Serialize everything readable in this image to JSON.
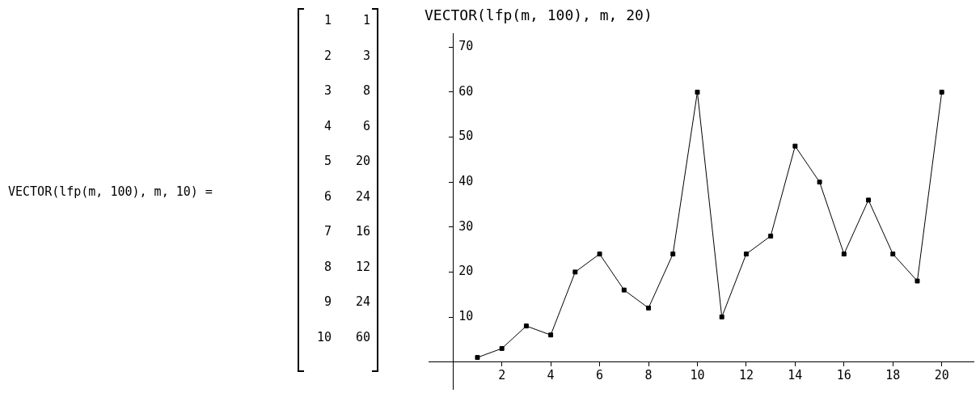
{
  "chart_data": {
    "type": "line",
    "title": "VECTOR(lfp(m, 100), m, 20)",
    "x": [
      1,
      2,
      3,
      4,
      5,
      6,
      7,
      8,
      9,
      10,
      11,
      12,
      13,
      14,
      15,
      16,
      17,
      18,
      19,
      20
    ],
    "series": [
      {
        "color": "#000000",
        "values": [
          1,
          3,
          8,
          6,
          20,
          24,
          16,
          12,
          24,
          60,
          10,
          24,
          28,
          48,
          40,
          24,
          36,
          24,
          18,
          60
        ]
      }
    ],
    "xlim": [
      -1,
      21.3
    ],
    "xticks": [
      2,
      4,
      6,
      8,
      10,
      12,
      14,
      16,
      18,
      20
    ],
    "ylim": [
      -6,
      73
    ],
    "yticks": [
      10,
      20,
      30,
      40,
      50,
      60,
      70
    ],
    "grid": false,
    "legend": false,
    "marker": "square",
    "line_style": "solid",
    "annotations": [
      "VECTOR(lfp(m, 100), m, 10) =",
      "1 1",
      "2 3",
      "3 8",
      "4 6",
      "5 20",
      "6 24",
      "7 16",
      "8 12",
      "9 24",
      "10 60"
    ]
  }
}
